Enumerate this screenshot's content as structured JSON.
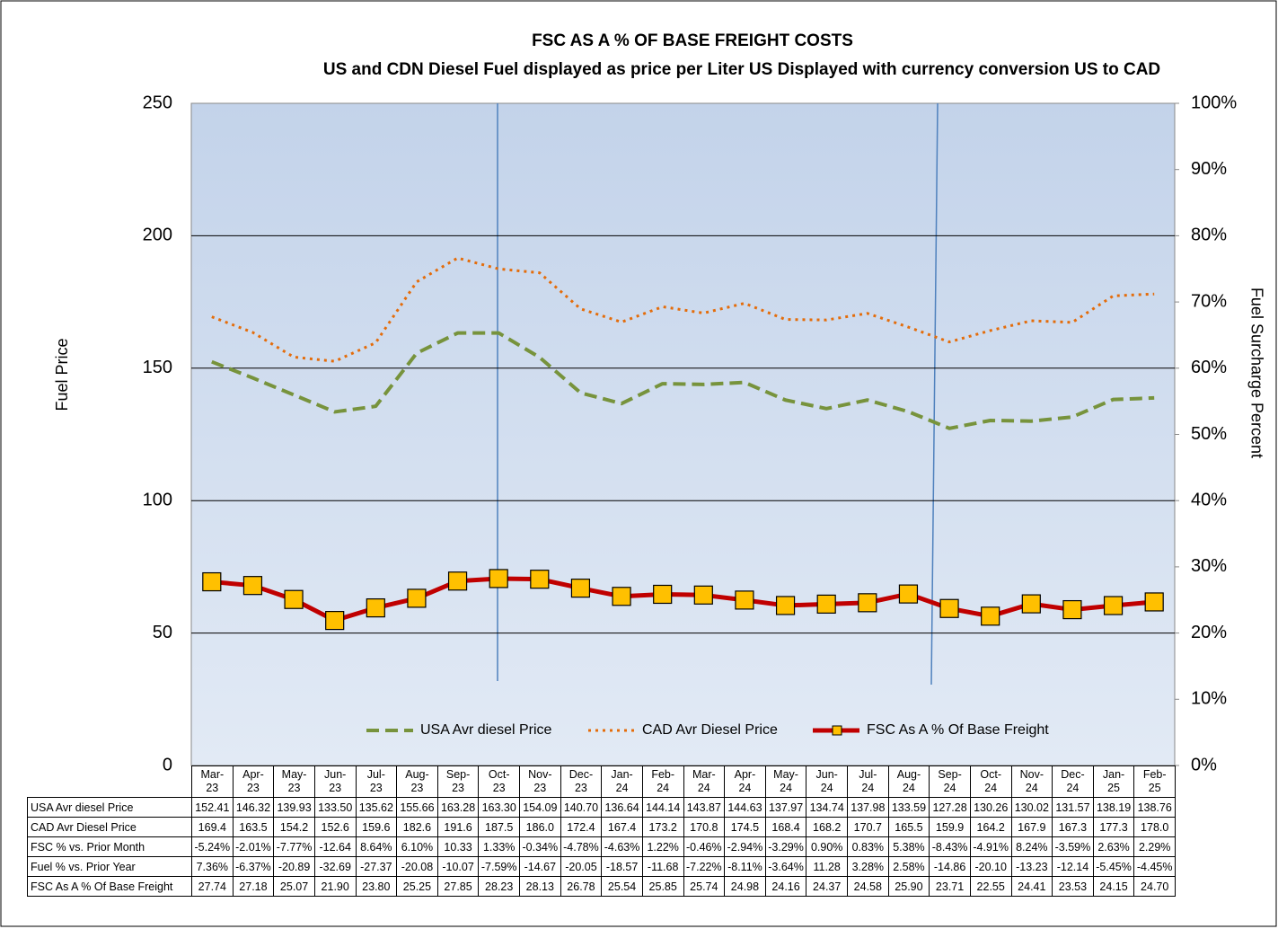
{
  "chart_data": {
    "type": "line",
    "title": "FSC AS A % OF BASE FREIGHT COSTS",
    "subtitle": "US and CDN Diesel Fuel displayed as price per Liter US Displayed with currency conversion US to CAD",
    "y_label": "Fuel Price",
    "y2_label": "Fuel Surcharge Percent",
    "categories": [
      "Mar-23",
      "Apr-23",
      "May-23",
      "Jun-23",
      "Jul-23",
      "Aug-23",
      "Sep-23",
      "Oct-23",
      "Nov-23",
      "Dec-23",
      "Jan-24",
      "Feb-24",
      "Mar-24",
      "Apr-24",
      "May-24",
      "Jun-24",
      "Jul-24",
      "Aug-24",
      "Sep-24",
      "Oct-24",
      "Nov-24",
      "Dec-24",
      "Jan-25",
      "Feb-25"
    ],
    "ylim": [
      0,
      250
    ],
    "yticks": [
      0,
      50,
      100,
      150,
      200,
      250
    ],
    "y2lim": [
      0,
      100
    ],
    "y2ticks": [
      {
        "value": 0,
        "label": "0%"
      },
      {
        "value": 10,
        "label": "10%"
      },
      {
        "value": 20,
        "label": "20%"
      },
      {
        "value": 30,
        "label": "30%"
      },
      {
        "value": 40,
        "label": "40%"
      },
      {
        "value": 50,
        "label": "50%"
      },
      {
        "value": 60,
        "label": "60%"
      },
      {
        "value": 70,
        "label": "70%"
      },
      {
        "value": 80,
        "label": "80%"
      },
      {
        "value": 90,
        "label": "90%"
      },
      {
        "value": 100,
        "label": "100%"
      }
    ],
    "grid": true,
    "series": [
      {
        "name": "USA Avr diesel Price",
        "color": "#77933c",
        "style": "dashed",
        "values": [
          152.41,
          146.32,
          139.93,
          133.5,
          135.62,
          155.66,
          163.28,
          163.3,
          154.09,
          140.7,
          136.64,
          144.14,
          143.87,
          144.63,
          137.97,
          134.74,
          137.98,
          133.59,
          127.28,
          130.26,
          130.02,
          131.57,
          138.19,
          138.76
        ],
        "value_labels": [
          "152.41",
          "146.32",
          "139.93",
          "133.50",
          "135.62",
          "155.66",
          "163.28",
          "163.30",
          "154.09",
          "140.70",
          "136.64",
          "144.14",
          "143.87",
          "144.63",
          "137.97",
          "134.74",
          "137.98",
          "133.59",
          "127.28",
          "130.26",
          "130.02",
          "131.57",
          "138.19",
          "138.76"
        ]
      },
      {
        "name": "CAD Avr Diesel Price",
        "color": "#e46c0a",
        "style": "dotted",
        "values": [
          169.4,
          163.5,
          154.2,
          152.6,
          159.6,
          182.6,
          191.6,
          187.5,
          186.0,
          172.4,
          167.4,
          173.2,
          170.8,
          174.5,
          168.4,
          168.2,
          170.7,
          165.5,
          159.9,
          164.2,
          167.9,
          167.3,
          177.3,
          178.0
        ],
        "value_labels": [
          "169.4",
          "163.5",
          "154.2",
          "152.6",
          "159.6",
          "182.6",
          "191.6",
          "187.5",
          "186.0",
          "172.4",
          "167.4",
          "173.2",
          "170.8",
          "174.5",
          "168.4",
          "168.2",
          "170.7",
          "165.5",
          "159.9",
          "164.2",
          "167.9",
          "167.3",
          "177.3",
          "178.0"
        ]
      },
      {
        "name": "FSC As A % Of Base Freight",
        "color": "#c00000",
        "marker_color": "#ffc000",
        "style": "solid",
        "axis": "y2",
        "values": [
          27.74,
          27.18,
          25.07,
          21.9,
          23.8,
          25.25,
          27.85,
          28.23,
          28.13,
          26.78,
          25.54,
          25.85,
          25.74,
          24.98,
          24.16,
          24.37,
          24.58,
          25.9,
          23.71,
          22.55,
          24.41,
          23.53,
          24.15,
          24.7
        ],
        "value_labels": [
          "27.74",
          "27.18",
          "25.07",
          "21.90",
          "23.80",
          "25.25",
          "27.85",
          "28.23",
          "28.13",
          "26.78",
          "25.54",
          "25.85",
          "25.74",
          "24.98",
          "24.16",
          "24.37",
          "24.58",
          "25.90",
          "23.71",
          "22.55",
          "24.41",
          "23.53",
          "24.15",
          "24.70"
        ]
      }
    ],
    "table_rows": [
      {
        "name": "FSC % vs. Prior Month",
        "values": [
          "-5.24%",
          "-2.01%",
          "-7.77%",
          "-12.64",
          "8.64%",
          "6.10%",
          "10.33",
          "1.33%",
          "-0.34%",
          "-4.78%",
          "-4.63%",
          "1.22%",
          "-0.46%",
          "-2.94%",
          "-3.29%",
          "0.90%",
          "0.83%",
          "5.38%",
          "-8.43%",
          "-4.91%",
          "8.24%",
          "-3.59%",
          "2.63%",
          "2.29%"
        ]
      },
      {
        "name": "Fuel % vs. Prior Year",
        "values": [
          "7.36%",
          "-6.37%",
          "-20.89",
          "-32.69",
          "-27.37",
          "-20.08",
          "-10.07",
          "-7.59%",
          "-14.67",
          "-20.05",
          "-18.57",
          "-11.68",
          "-7.22%",
          "-8.11%",
          "-3.64%",
          "11.28",
          "3.28%",
          "2.58%",
          "-14.86",
          "-20.10",
          "-13.23",
          "-12.14",
          "-5.45%",
          "-4.45%"
        ]
      }
    ]
  }
}
